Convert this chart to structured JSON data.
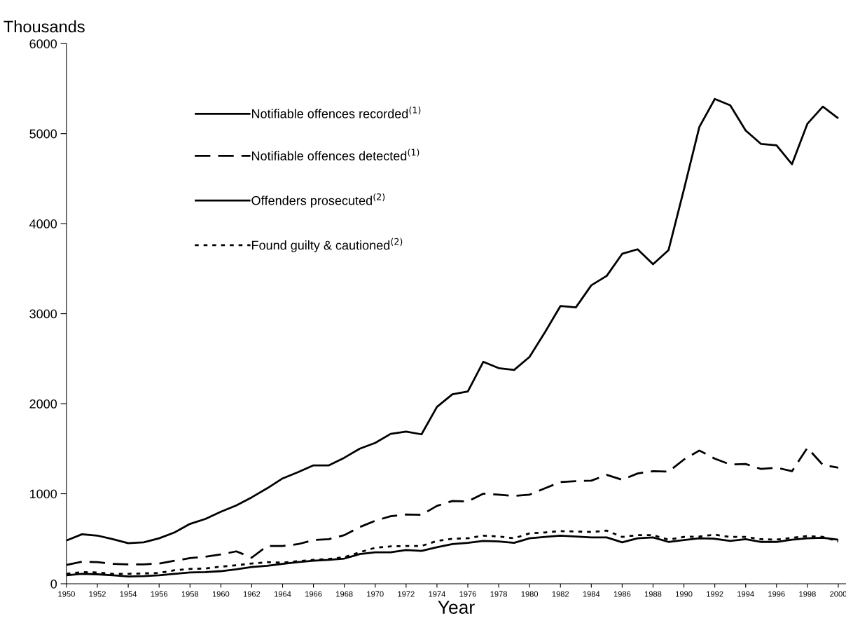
{
  "chart_data": {
    "type": "line",
    "ylabel": "Thousands",
    "xlabel": "Year",
    "x": [
      1950,
      1951,
      1952,
      1953,
      1954,
      1955,
      1956,
      1957,
      1958,
      1959,
      1960,
      1961,
      1962,
      1963,
      1964,
      1965,
      1966,
      1967,
      1968,
      1969,
      1970,
      1971,
      1972,
      1973,
      1974,
      1975,
      1976,
      1977,
      1978,
      1979,
      1980,
      1981,
      1982,
      1983,
      1984,
      1985,
      1986,
      1987,
      1988,
      1989,
      1990,
      1991,
      1992,
      1993,
      1994,
      1995,
      1996,
      1997,
      1998,
      1999,
      2000
    ],
    "xlim": [
      1950,
      2000.5
    ],
    "xticks": [
      1950,
      1952,
      1954,
      1956,
      1958,
      1960,
      1962,
      1964,
      1966,
      1968,
      1970,
      1972,
      1974,
      1976,
      1978,
      1980,
      1982,
      1984,
      1986,
      1988,
      1990,
      1992,
      1994,
      1996,
      1998,
      2000
    ],
    "ylim": [
      0,
      6000
    ],
    "yticks": [
      0,
      1000,
      2000,
      3000,
      4000,
      5000,
      6000
    ],
    "grid": false,
    "legend": "top left",
    "marker": "none",
    "series": [
      {
        "name": "Notifiable offences recorded$^{(1)}$",
        "color": "#000000",
        "line_style": "solid",
        "values": [
          480,
          550,
          535,
          495,
          450,
          460,
          505,
          570,
          665,
          720,
          800,
          870,
          960,
          1060,
          1170,
          1240,
          1315,
          1315,
          1400,
          1500,
          1565,
          1665,
          1690,
          1660,
          1965,
          2105,
          2135,
          2465,
          2395,
          2375,
          2520,
          2795,
          3085,
          3070,
          3315,
          3420,
          3665,
          3715,
          3550,
          3705,
          4380,
          5075,
          5385,
          5315,
          5035,
          4885,
          4870,
          4660,
          5110,
          5300,
          5170
        ]
      },
      {
        "name": "Notifiable offences detected$^{(1)}$",
        "color": "#000000",
        "line_style": "dashed",
        "values": [
          210,
          245,
          240,
          220,
          215,
          215,
          225,
          255,
          285,
          300,
          325,
          360,
          290,
          420,
          420,
          440,
          485,
          495,
          540,
          630,
          700,
          750,
          770,
          765,
          865,
          920,
          915,
          1000,
          990,
          975,
          990,
          1060,
          1130,
          1140,
          1145,
          1210,
          1155,
          1225,
          1250,
          1245,
          1380,
          1480,
          1390,
          1325,
          1330,
          1275,
          1290,
          1250,
          1510,
          1320,
          1290
        ]
      },
      {
        "name": "Offenders prosecuted$^{(2)}$",
        "color": "#000000",
        "line_style": "solid",
        "values": [
          95,
          110,
          105,
          95,
          80,
          85,
          95,
          110,
          125,
          130,
          140,
          160,
          185,
          200,
          220,
          240,
          255,
          265,
          280,
          330,
          350,
          350,
          375,
          365,
          405,
          440,
          455,
          475,
          470,
          455,
          505,
          520,
          535,
          525,
          515,
          515,
          460,
          505,
          515,
          465,
          485,
          505,
          500,
          475,
          495,
          465,
          465,
          490,
          505,
          510,
          490
        ]
      },
      {
        "name": "Found guilty & cautioned$^{(2)}$",
        "color": "#000000",
        "line_style": "dotted",
        "values": [
          110,
          130,
          125,
          110,
          110,
          115,
          120,
          150,
          165,
          170,
          190,
          205,
          225,
          240,
          235,
          250,
          265,
          275,
          295,
          350,
          400,
          415,
          420,
          420,
          475,
          500,
          505,
          535,
          525,
          505,
          560,
          570,
          585,
          580,
          575,
          590,
          520,
          540,
          540,
          490,
          520,
          525,
          545,
          520,
          520,
          495,
          490,
          510,
          530,
          520,
          470
        ]
      }
    ]
  }
}
